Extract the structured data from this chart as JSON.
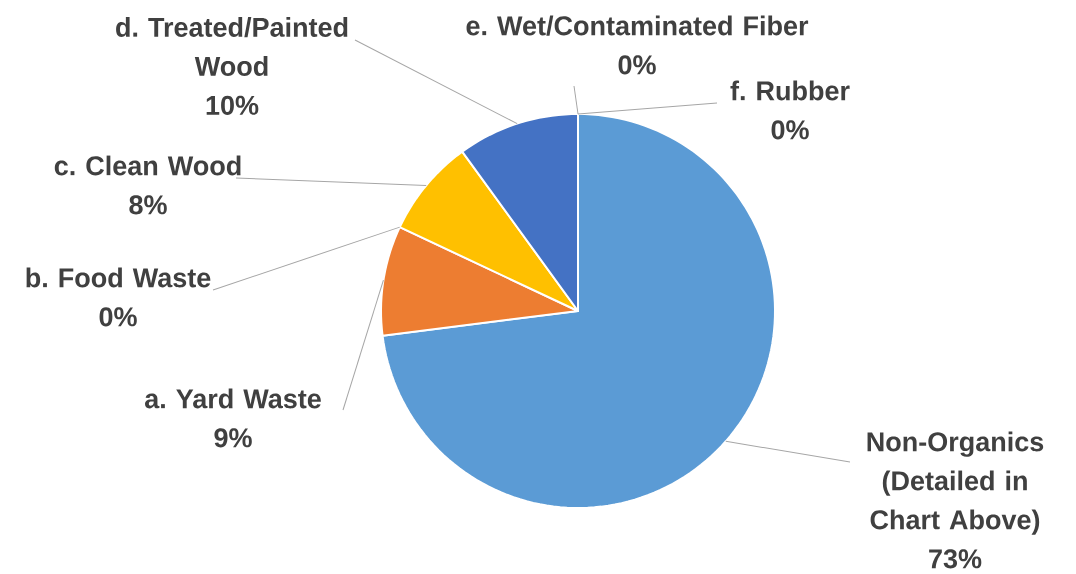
{
  "chart_data": {
    "type": "pie",
    "categories": [
      "Non-Organics (Detailed in Chart Above)",
      "a. Yard Waste",
      "b. Food Waste",
      "c. Clean Wood",
      "d. Treated/Painted Wood",
      "e. Wet/Contaminated Fiber",
      "f. Rubber"
    ],
    "values": [
      73,
      9,
      0,
      8,
      10,
      0,
      0
    ],
    "value_labels": [
      "73%",
      "9%",
      "0%",
      "8%",
      "10%",
      "0%",
      "0%"
    ],
    "colors": [
      "#5b9bd5",
      "#ed7d31",
      "#a5a5a5",
      "#ffc000",
      "#4472c4",
      "#70ad47",
      "#264478"
    ]
  }
}
